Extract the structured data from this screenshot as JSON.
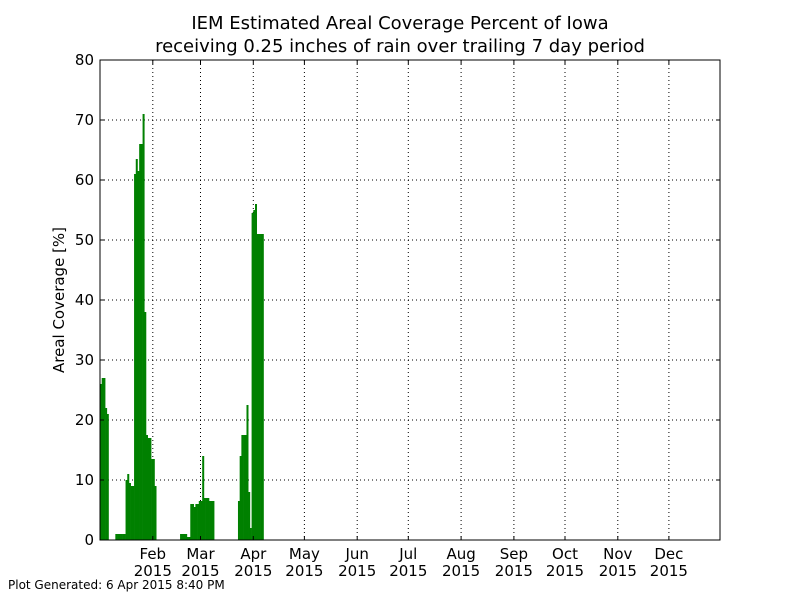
{
  "chart_data": {
    "type": "bar",
    "title": "IEM Estimated Areal Coverage Percent of Iowa",
    "subtitle": "receiving 0.25 inches of rain over trailing 7 day period",
    "xlabel": "",
    "ylabel": "Areal Coverage [%]",
    "xlim": [
      "2015-01-01",
      "2015-12-31"
    ],
    "ylim": [
      0,
      80
    ],
    "grid": true,
    "bar_color": "#008000",
    "y_ticks": [
      0,
      10,
      20,
      30,
      40,
      50,
      60,
      70,
      80
    ],
    "x_ticks": [
      {
        "date": "2015-02-01",
        "month": "Feb",
        "year": "2015"
      },
      {
        "date": "2015-03-01",
        "month": "Mar",
        "year": "2015"
      },
      {
        "date": "2015-04-01",
        "month": "Apr",
        "year": "2015"
      },
      {
        "date": "2015-05-01",
        "month": "May",
        "year": "2015"
      },
      {
        "date": "2015-06-01",
        "month": "Jun",
        "year": "2015"
      },
      {
        "date": "2015-07-01",
        "month": "Jul",
        "year": "2015"
      },
      {
        "date": "2015-08-01",
        "month": "Aug",
        "year": "2015"
      },
      {
        "date": "2015-09-01",
        "month": "Sep",
        "year": "2015"
      },
      {
        "date": "2015-10-01",
        "month": "Oct",
        "year": "2015"
      },
      {
        "date": "2015-11-01",
        "month": "Nov",
        "year": "2015"
      },
      {
        "date": "2015-12-01",
        "month": "Dec",
        "year": "2015"
      }
    ],
    "x": [
      "2015-01-01",
      "2015-01-02",
      "2015-01-03",
      "2015-01-04",
      "2015-01-05",
      "2015-01-06",
      "2015-01-07",
      "2015-01-08",
      "2015-01-09",
      "2015-01-10",
      "2015-01-11",
      "2015-01-12",
      "2015-01-13",
      "2015-01-14",
      "2015-01-15",
      "2015-01-16",
      "2015-01-17",
      "2015-01-18",
      "2015-01-19",
      "2015-01-20",
      "2015-01-21",
      "2015-01-22",
      "2015-01-23",
      "2015-01-24",
      "2015-01-25",
      "2015-01-26",
      "2015-01-27",
      "2015-01-28",
      "2015-01-29",
      "2015-01-30",
      "2015-01-31",
      "2015-02-01",
      "2015-02-02",
      "2015-02-03",
      "2015-02-04",
      "2015-02-05",
      "2015-02-06",
      "2015-02-07",
      "2015-02-08",
      "2015-02-09",
      "2015-02-10",
      "2015-02-11",
      "2015-02-12",
      "2015-02-13",
      "2015-02-14",
      "2015-02-15",
      "2015-02-16",
      "2015-02-17",
      "2015-02-18",
      "2015-02-19",
      "2015-02-20",
      "2015-02-21",
      "2015-02-22",
      "2015-02-23",
      "2015-02-24",
      "2015-02-25",
      "2015-02-26",
      "2015-02-27",
      "2015-02-28",
      "2015-03-01",
      "2015-03-02",
      "2015-03-03",
      "2015-03-04",
      "2015-03-05",
      "2015-03-06",
      "2015-03-07",
      "2015-03-08",
      "2015-03-09",
      "2015-03-10",
      "2015-03-11",
      "2015-03-12",
      "2015-03-13",
      "2015-03-14",
      "2015-03-15",
      "2015-03-16",
      "2015-03-17",
      "2015-03-18",
      "2015-03-19",
      "2015-03-20",
      "2015-03-21",
      "2015-03-22",
      "2015-03-23",
      "2015-03-24",
      "2015-03-25",
      "2015-03-26",
      "2015-03-27",
      "2015-03-28",
      "2015-03-29",
      "2015-03-30",
      "2015-03-31",
      "2015-04-01",
      "2015-04-02",
      "2015-04-03",
      "2015-04-04",
      "2015-04-05",
      "2015-04-06"
    ],
    "values": [
      26,
      27,
      27,
      22,
      21,
      0,
      0,
      0,
      0,
      1,
      1,
      1,
      1,
      1,
      1,
      10,
      11,
      9.5,
      9,
      9,
      61,
      63.5,
      61.5,
      66,
      66,
      71,
      38,
      17.5,
      17,
      17,
      13.5,
      13.5,
      9,
      0,
      0,
      0,
      0,
      0,
      0,
      0,
      0,
      0,
      0,
      0,
      0,
      0,
      0,
      1,
      1,
      1,
      1,
      0.5,
      0.5,
      6,
      6,
      5.5,
      6,
      6,
      6.5,
      6.5,
      14,
      7,
      7,
      7,
      6.5,
      6.5,
      6.5,
      0,
      0,
      0,
      0,
      0,
      0,
      0,
      0,
      0,
      0,
      0,
      0,
      0,
      0,
      6.5,
      14,
      17.5,
      17.5,
      17.5,
      22.5,
      8,
      2,
      54.5,
      55,
      56,
      51,
      51,
      51,
      51
    ]
  },
  "footer": "Plot Generated: 6 Apr 2015 8:40 PM"
}
